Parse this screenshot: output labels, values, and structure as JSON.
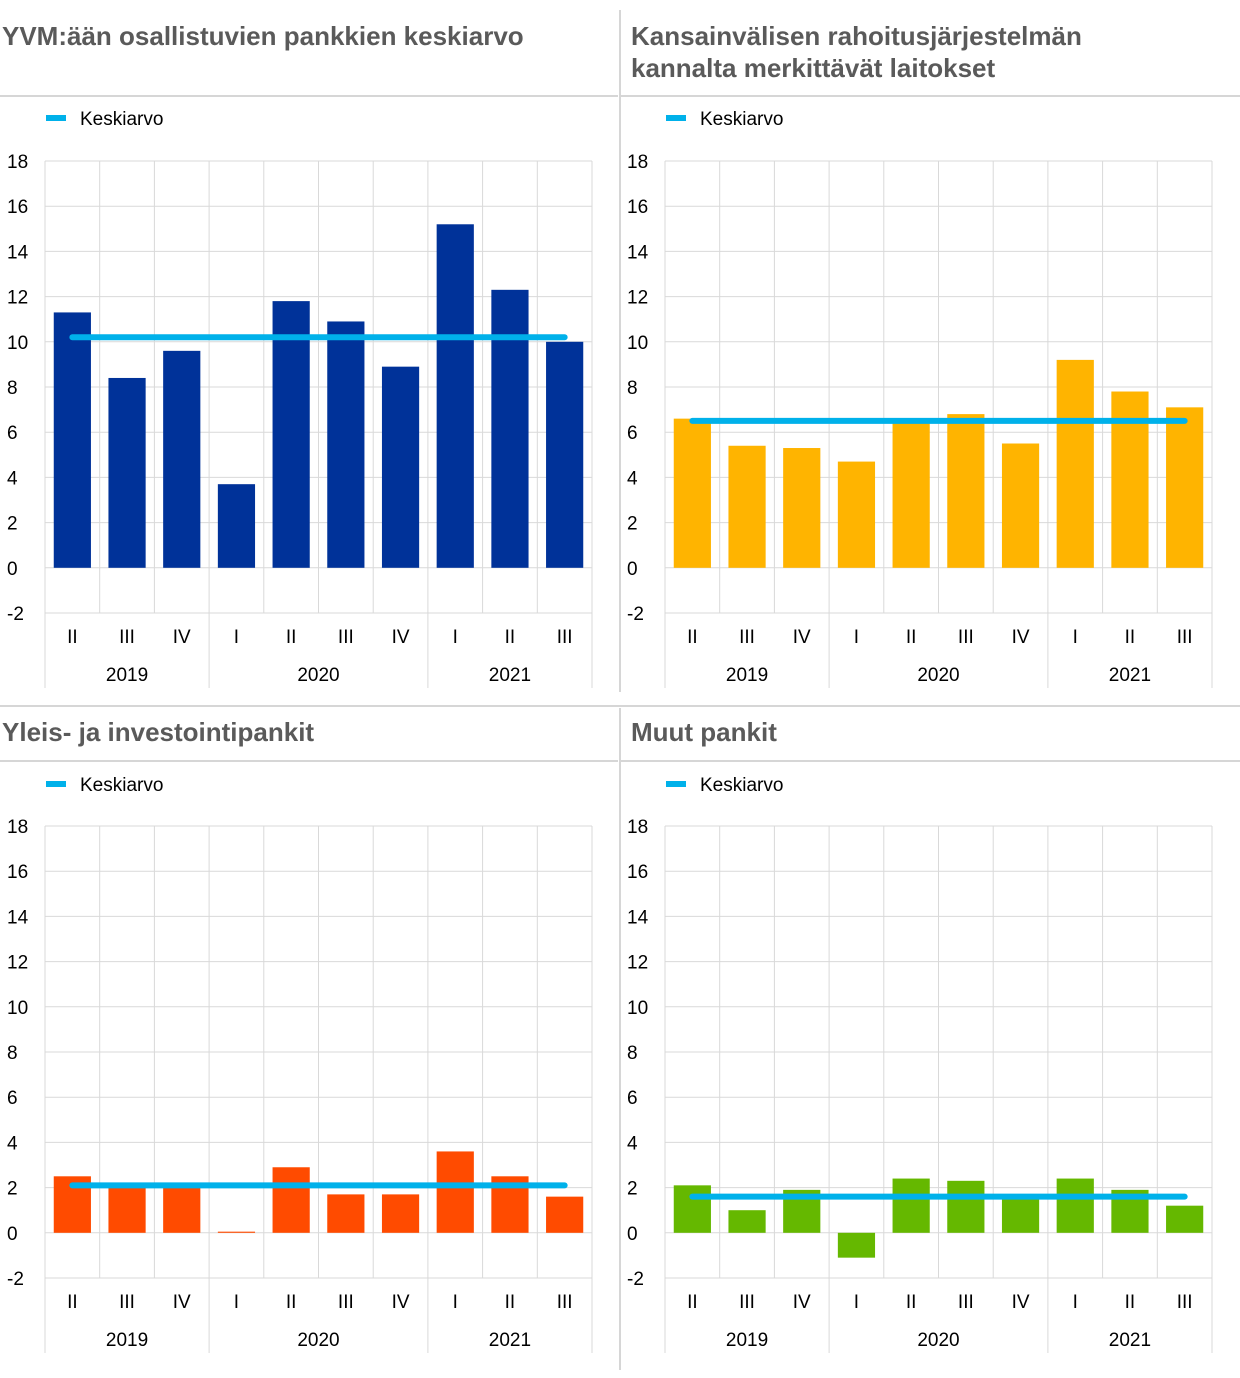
{
  "chart_data": [
    {
      "type": "bar",
      "title": "YVM:ään osallistuvien pankkien keskiarvo",
      "legend": "Keskiarvo",
      "legend_placement": "top-left",
      "categories": [
        "II",
        "III",
        "IV",
        "I",
        "II",
        "III",
        "IV",
        "I",
        "II",
        "III"
      ],
      "years": [
        {
          "label": "2019",
          "span": 3
        },
        {
          "label": "2020",
          "span": 4
        },
        {
          "label": "2021",
          "span": 3
        }
      ],
      "values": [
        11.3,
        8.4,
        9.6,
        3.7,
        11.8,
        10.9,
        8.9,
        15.2,
        12.3,
        10.0
      ],
      "average": 10.2,
      "ylim": [
        -2,
        18
      ],
      "yticks": [
        18,
        16,
        14,
        12,
        10,
        8,
        6,
        4,
        2,
        0,
        -2
      ],
      "bar_color": "#003299",
      "avg_color": "#00b1ea",
      "grid": true
    },
    {
      "type": "bar",
      "title": "Kansainvälisen rahoitusjärjestelmän kannalta merkittävät laitokset",
      "legend": "Keskiarvo",
      "legend_placement": "top-left",
      "categories": [
        "II",
        "III",
        "IV",
        "I",
        "II",
        "III",
        "IV",
        "I",
        "II",
        "III"
      ],
      "years": [
        {
          "label": "2019",
          "span": 3
        },
        {
          "label": "2020",
          "span": 4
        },
        {
          "label": "2021",
          "span": 3
        }
      ],
      "values": [
        6.6,
        5.4,
        5.3,
        4.7,
        6.4,
        6.8,
        5.5,
        9.2,
        7.8,
        7.1
      ],
      "average": 6.5,
      "ylim": [
        -2,
        18
      ],
      "yticks": [
        18,
        16,
        14,
        12,
        10,
        8,
        6,
        4,
        2,
        0,
        -2
      ],
      "bar_color": "#ffb400",
      "avg_color": "#00b1ea",
      "grid": true
    },
    {
      "type": "bar",
      "title": "Yleis- ja investointipankit",
      "legend": "Keskiarvo",
      "legend_placement": "top-left",
      "categories": [
        "II",
        "III",
        "IV",
        "I",
        "II",
        "III",
        "IV",
        "I",
        "II",
        "III"
      ],
      "years": [
        {
          "label": "2019",
          "span": 3
        },
        {
          "label": "2020",
          "span": 4
        },
        {
          "label": "2021",
          "span": 3
        }
      ],
      "values": [
        2.5,
        2.0,
        2.2,
        0.05,
        2.9,
        1.7,
        1.7,
        3.6,
        2.5,
        1.6
      ],
      "average": 2.1,
      "ylim": [
        -2,
        18
      ],
      "yticks": [
        18,
        16,
        14,
        12,
        10,
        8,
        6,
        4,
        2,
        0,
        -2
      ],
      "bar_color": "#ff4b00",
      "avg_color": "#00b1ea",
      "grid": true
    },
    {
      "type": "bar",
      "title": "Muut pankit",
      "legend": "Keskiarvo",
      "legend_placement": "top-left",
      "categories": [
        "II",
        "III",
        "IV",
        "I",
        "II",
        "III",
        "IV",
        "I",
        "II",
        "III"
      ],
      "years": [
        {
          "label": "2019",
          "span": 3
        },
        {
          "label": "2020",
          "span": 4
        },
        {
          "label": "2021",
          "span": 3
        }
      ],
      "values": [
        2.1,
        1.0,
        1.9,
        -1.1,
        2.4,
        2.3,
        1.6,
        2.4,
        1.9,
        1.2
      ],
      "average": 1.6,
      "ylim": [
        -2,
        18
      ],
      "yticks": [
        18,
        16,
        14,
        12,
        10,
        8,
        6,
        4,
        2,
        0,
        -2
      ],
      "bar_color": "#65b800",
      "avg_color": "#00b1ea",
      "grid": true
    }
  ]
}
